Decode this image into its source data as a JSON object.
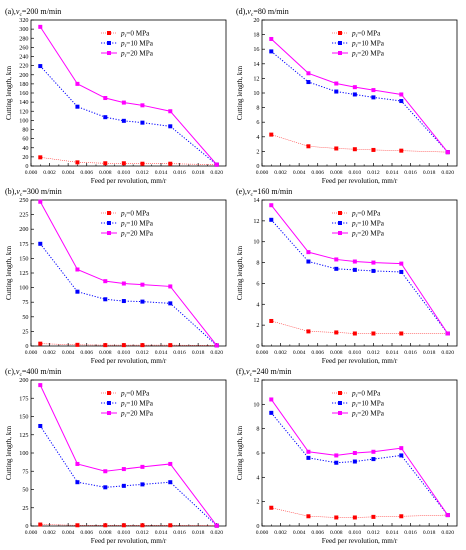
{
  "colors": {
    "s0": "#ff0000",
    "s10": "#0000ff",
    "s20": "#ff00ff",
    "axis": "#000000"
  },
  "x_ticks": [
    0,
    0.002,
    0.004,
    0.006,
    0.008,
    0.01,
    0.012,
    0.014,
    0.016,
    0.018,
    0.02
  ],
  "x_tick_labels": [
    "0.000",
    "0.002",
    "0.004",
    "0.006",
    "0.008",
    "0.010",
    "0.012",
    "0.014",
    "0.016",
    "0.018",
    "0.020"
  ],
  "chart_data": [
    {
      "type": "line",
      "title": "(a),",
      "title_sub": "v",
      "title_subscript": "c",
      "title_rest": "=200 m/min",
      "xlabel": "Feed per revolution, mm/r",
      "ylabel": "Cutting length, km",
      "xlim": [
        0,
        0.021
      ],
      "ylim": [
        0,
        320
      ],
      "yticks": [
        0,
        20,
        40,
        60,
        80,
        100,
        120,
        140,
        160,
        180,
        200,
        220,
        240,
        260,
        280,
        300,
        320
      ],
      "grid": false,
      "legend_position": "top-center",
      "x": [
        0.001,
        0.005,
        0.008,
        0.01,
        0.012,
        0.015,
        0.02
      ],
      "series": [
        {
          "name": "pₙ=0 MPa",
          "name_main": "p",
          "name_sub": "r",
          "name_rest": "=0 MPa",
          "style": "dashed-thin",
          "marker": "square",
          "color_key": "s0",
          "values": [
            19,
            8,
            6,
            6,
            5,
            5,
            3
          ]
        },
        {
          "name": "pₙ=10 MPa",
          "name_main": "p",
          "name_sub": "r",
          "name_rest": "=10 MPa",
          "style": "dotted",
          "marker": "square",
          "color_key": "s10",
          "values": [
            219,
            130,
            107,
            99,
            95,
            87,
            3
          ]
        },
        {
          "name": "pₙ=20 MPa",
          "name_main": "p",
          "name_sub": "r",
          "name_rest": "=20 MPa",
          "style": "solid",
          "marker": "square",
          "color_key": "s20",
          "values": [
            305,
            180,
            149,
            139,
            133,
            120,
            3
          ]
        }
      ]
    },
    {
      "type": "line",
      "title": "(d),",
      "title_sub": "v",
      "title_subscript": "c",
      "title_rest": "=80 m/min",
      "xlabel": "Feed per revolution, mm/r",
      "ylabel": "Cutting length, km",
      "xlim": [
        0,
        0.021
      ],
      "ylim": [
        0,
        20
      ],
      "yticks": [
        0,
        2,
        4,
        6,
        8,
        10,
        12,
        14,
        16,
        18,
        20
      ],
      "grid": false,
      "legend_position": "top-center",
      "x": [
        0.001,
        0.005,
        0.008,
        0.01,
        0.012,
        0.015,
        0.02
      ],
      "series": [
        {
          "name": "pₙ=0 MPa",
          "name_main": "p",
          "name_sub": "r",
          "name_rest": "=0 MPa",
          "style": "dashed-thin",
          "marker": "square",
          "color_key": "s0",
          "values": [
            4.3,
            2.7,
            2.4,
            2.3,
            2.2,
            2.1,
            1.9
          ]
        },
        {
          "name": "pₙ=10 MPa",
          "name_main": "p",
          "name_sub": "r",
          "name_rest": "=10 MPa",
          "style": "dotted",
          "marker": "square",
          "color_key": "s10",
          "values": [
            15.7,
            11.5,
            10.2,
            9.8,
            9.4,
            8.9,
            1.9
          ]
        },
        {
          "name": "pₙ=20 MPa",
          "name_main": "p",
          "name_sub": "r",
          "name_rest": "=20 MPa",
          "style": "solid",
          "marker": "square",
          "color_key": "s20",
          "values": [
            17.4,
            12.7,
            11.3,
            10.8,
            10.4,
            9.8,
            1.9
          ]
        }
      ]
    },
    {
      "type": "line",
      "title": "(b),",
      "title_sub": "v",
      "title_subscript": "c",
      "title_rest": "=300 m/min",
      "xlabel": "Feed per revolution, mm/r",
      "ylabel": "Cutting length, km",
      "xlim": [
        0,
        0.021
      ],
      "ylim": [
        0,
        250
      ],
      "yticks": [
        0,
        25,
        50,
        75,
        100,
        125,
        150,
        175,
        200,
        225,
        250
      ],
      "grid": false,
      "legend_position": "top-center",
      "x": [
        0.001,
        0.005,
        0.008,
        0.01,
        0.012,
        0.015,
        0.02
      ],
      "series": [
        {
          "name": "pₙ=0 MPa",
          "name_main": "p",
          "name_sub": "r",
          "name_rest": "=0 MPa",
          "style": "dashed-thin",
          "marker": "square",
          "color_key": "s0",
          "values": [
            4,
            2,
            1.5,
            1.5,
            1.5,
            1.5,
            1
          ]
        },
        {
          "name": "pₙ=10 MPa",
          "name_main": "p",
          "name_sub": "r",
          "name_rest": "=10 MPa",
          "style": "dotted",
          "marker": "square",
          "color_key": "s10",
          "values": [
            175,
            93,
            80,
            77,
            76,
            73,
            1
          ]
        },
        {
          "name": "pₙ=20 MPa",
          "name_main": "p",
          "name_sub": "r",
          "name_rest": "=20 MPa",
          "style": "solid",
          "marker": "square",
          "color_key": "s20",
          "values": [
            247,
            131,
            111,
            107,
            105,
            102,
            1
          ]
        }
      ]
    },
    {
      "type": "line",
      "title": "(e),",
      "title_sub": "v",
      "title_subscript": "c",
      "title_rest": "=160 m/min",
      "xlabel": "Feed per revolution, mm/r",
      "ylabel": "Cutting length, km",
      "xlim": [
        0,
        0.021
      ],
      "ylim": [
        0,
        14
      ],
      "yticks": [
        0,
        2,
        4,
        6,
        8,
        10,
        12,
        14
      ],
      "grid": false,
      "legend_position": "top-center",
      "x": [
        0.001,
        0.005,
        0.008,
        0.01,
        0.012,
        0.015,
        0.02
      ],
      "series": [
        {
          "name": "pₙ=0 MPa",
          "name_main": "p",
          "name_sub": "r",
          "name_rest": "=0 MPa",
          "style": "dashed-thin",
          "marker": "square",
          "color_key": "s0",
          "values": [
            2.4,
            1.4,
            1.3,
            1.2,
            1.2,
            1.2,
            1.2
          ]
        },
        {
          "name": "pₙ=10 MPa",
          "name_main": "p",
          "name_sub": "r",
          "name_rest": "=10 MPa",
          "style": "dotted",
          "marker": "square",
          "color_key": "s10",
          "values": [
            12.1,
            8.1,
            7.4,
            7.3,
            7.2,
            7.1,
            1.2
          ]
        },
        {
          "name": "pₙ=20 MPa",
          "name_main": "p",
          "name_sub": "r",
          "name_rest": "=20 MPa",
          "style": "solid",
          "marker": "square",
          "color_key": "s20",
          "values": [
            13.5,
            9.0,
            8.3,
            8.1,
            8.0,
            7.9,
            1.2
          ]
        }
      ]
    },
    {
      "type": "line",
      "title": "(c),",
      "title_sub": "v",
      "title_subscript": "c",
      "title_rest": "=400 m/min",
      "xlabel": "Feed per revolution, mm/r",
      "ylabel": "Cutting length, km",
      "xlim": [
        0,
        0.021
      ],
      "ylim": [
        0,
        200
      ],
      "yticks": [
        0,
        25,
        50,
        75,
        100,
        125,
        150,
        175,
        200
      ],
      "grid": false,
      "legend_position": "top-center",
      "x": [
        0.001,
        0.005,
        0.008,
        0.01,
        0.012,
        0.015,
        0.02
      ],
      "series": [
        {
          "name": "pₙ=0 MPa",
          "name_main": "p",
          "name_sub": "r",
          "name_rest": "=0 MPa",
          "style": "dashed-thin",
          "marker": "square",
          "color_key": "s0",
          "values": [
            2,
            1,
            1,
            1,
            1,
            1,
            0.5
          ]
        },
        {
          "name": "pₙ=10 MPa",
          "name_main": "p",
          "name_sub": "r",
          "name_rest": "=10 MPa",
          "style": "dotted",
          "marker": "square",
          "color_key": "s10",
          "values": [
            137,
            60,
            53,
            55,
            57,
            60,
            0.5
          ]
        },
        {
          "name": "pₙ=20 MPa",
          "name_main": "p",
          "name_sub": "r",
          "name_rest": "=20 MPa",
          "style": "solid",
          "marker": "square",
          "color_key": "s20",
          "values": [
            193,
            85,
            75,
            78,
            81,
            85,
            0.5
          ]
        }
      ]
    },
    {
      "type": "line",
      "title": "(f),",
      "title_sub": "v",
      "title_subscript": "c",
      "title_rest": "=240 m/min",
      "xlabel": "Feed per revolution, mm/r",
      "ylabel": "Cutting length, km",
      "xlim": [
        0,
        0.021
      ],
      "ylim": [
        0,
        12
      ],
      "yticks": [
        0,
        2,
        4,
        6,
        8,
        10,
        12
      ],
      "grid": false,
      "legend_position": "top-center",
      "x": [
        0.001,
        0.005,
        0.008,
        0.01,
        0.012,
        0.015,
        0.02
      ],
      "series": [
        {
          "name": "pₙ=0 MPa",
          "name_main": "p",
          "name_sub": "r",
          "name_rest": "=0 MPa",
          "style": "dashed-thin",
          "marker": "square",
          "color_key": "s0",
          "values": [
            1.5,
            0.8,
            0.7,
            0.7,
            0.75,
            0.8,
            0.9
          ]
        },
        {
          "name": "pₙ=10 MPa",
          "name_main": "p",
          "name_sub": "r",
          "name_rest": "=10 MPa",
          "style": "dotted",
          "marker": "square",
          "color_key": "s10",
          "values": [
            9.3,
            5.6,
            5.2,
            5.3,
            5.5,
            5.8,
            0.9
          ]
        },
        {
          "name": "pₙ=20 MPa",
          "name_main": "p",
          "name_sub": "r",
          "name_rest": "=20 MPa",
          "style": "solid",
          "marker": "square",
          "color_key": "s20",
          "values": [
            10.4,
            6.1,
            5.8,
            6.0,
            6.1,
            6.4,
            0.9
          ]
        }
      ]
    }
  ]
}
